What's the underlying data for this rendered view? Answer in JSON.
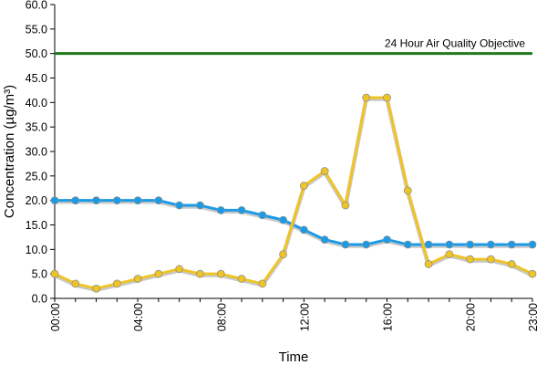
{
  "chart_data": {
    "type": "line",
    "xlabel": "Time",
    "ylabel": "Concentration (µg/m³)",
    "ylim": [
      0,
      60
    ],
    "y_ticks": [
      "0.0",
      "5.0",
      "10.0",
      "15.0",
      "20.0",
      "25.0",
      "30.0",
      "35.0",
      "40.0",
      "45.0",
      "50.0",
      "55.0",
      "60.0"
    ],
    "x_hours": [
      0,
      1,
      2,
      3,
      4,
      5,
      6,
      7,
      8,
      9,
      10,
      11,
      12,
      13,
      14,
      15,
      16,
      17,
      18,
      19,
      20,
      21,
      22,
      23
    ],
    "x_tick_labels": [
      {
        "hour": 0,
        "label": "00:00"
      },
      {
        "hour": 4,
        "label": "04:00"
      },
      {
        "hour": 8,
        "label": "08:00"
      },
      {
        "hour": 12,
        "label": "12:00"
      },
      {
        "hour": 16,
        "label": "16:00"
      },
      {
        "hour": 20,
        "label": "20:00"
      },
      {
        "hour": 23,
        "label": "23:00"
      }
    ],
    "grid": false,
    "series": [
      {
        "color": "#1a9be8",
        "values": [
          20,
          20,
          20,
          20,
          20,
          20,
          19,
          19,
          18,
          18,
          17,
          16,
          14,
          12,
          11,
          11,
          12,
          11,
          11,
          11,
          11,
          11,
          11,
          11
        ]
      },
      {
        "color": "#f0c424",
        "values": [
          5,
          3,
          2,
          3,
          4,
          5,
          6,
          5,
          5,
          4,
          3,
          9,
          23,
          26,
          19,
          41,
          41,
          22,
          7,
          9,
          8,
          8,
          7,
          5
        ]
      }
    ],
    "reference_line": {
      "value": 50,
      "label": "24 Hour Air Quality Objective",
      "color": "#1e7a1e"
    }
  }
}
